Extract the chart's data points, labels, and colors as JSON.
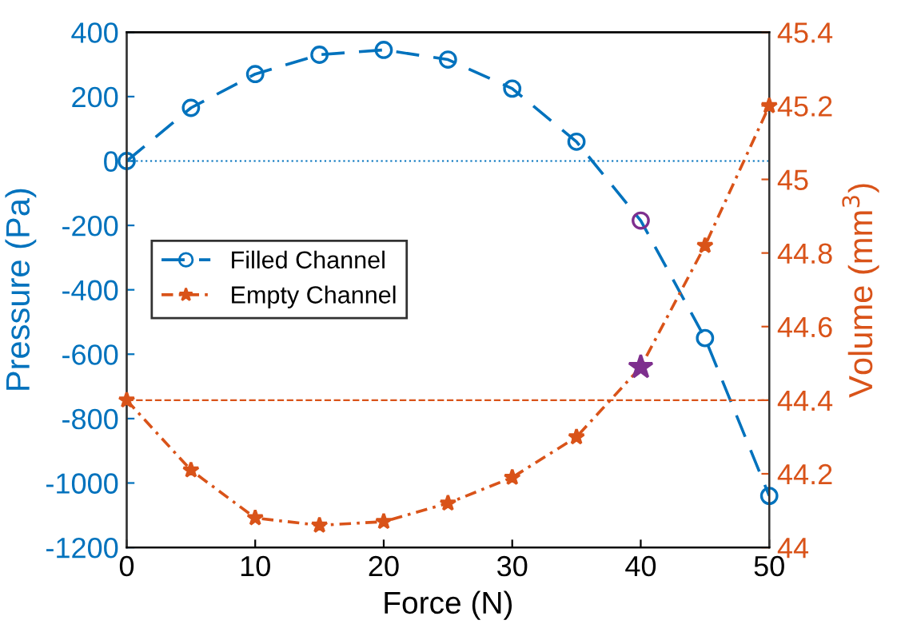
{
  "chart_data": {
    "type": "line",
    "xlabel": "Force (N)",
    "ylabel": "Pressure (Pa)",
    "y2label": "Volume (mm$^{3}$)",
    "x": [
      0,
      5,
      10,
      15,
      20,
      25,
      30,
      35,
      40,
      45,
      50
    ],
    "series": [
      {
        "name": "Filled Channel",
        "color": "#0072bd",
        "marker": "circle",
        "line_style": "dashed",
        "values": [
          0,
          165,
          270,
          330,
          345,
          315,
          225,
          60,
          -185,
          -550,
          -1040
        ],
        "colors": [
          "#0072bd",
          "#0072bd",
          "#0072bd",
          "#0072bd",
          "#0072bd",
          "#0072bd",
          "#0072bd",
          "#0072bd",
          "#7e2f8e",
          "#0072bd",
          "#0072bd"
        ]
      },
      {
        "name": "Empty Channel",
        "color": "#d95319",
        "marker": "star",
        "line_style": "dotted",
        "axis": "y2",
        "values": [
          44.4,
          44.21,
          44.08,
          44.06,
          44.07,
          44.12,
          44.19,
          44.3,
          44.49,
          44.82,
          45.2
        ],
        "colors": [
          "#d95319",
          "#d95319",
          "#d95319",
          "#d95319",
          "#d95319",
          "#d95319",
          "#d95319",
          "#d95319",
          "#7e2f8e",
          "#d95319",
          "#d95319"
        ]
      }
    ],
    "xlim": [
      0,
      50
    ],
    "xticks": [
      0,
      10,
      20,
      30,
      40,
      50
    ],
    "ylim": [
      -1200,
      400
    ],
    "yticks": [
      -1200,
      -1000,
      -800,
      -600,
      -400,
      -200,
      0,
      200,
      400
    ],
    "y2lim": [
      44,
      45.4
    ],
    "y2ticks": [
      44,
      44.2,
      44.4,
      44.6,
      44.8,
      45,
      45.2,
      45.4
    ],
    "ref_lines": [
      {
        "axis": "y",
        "value": 0,
        "color": "#0072bd",
        "line_style": "dotted"
      },
      {
        "axis": "y2",
        "value": 44.4,
        "color": "#d95319",
        "line_style": "dashed"
      }
    ],
    "legend": "left",
    "grid": false
  }
}
